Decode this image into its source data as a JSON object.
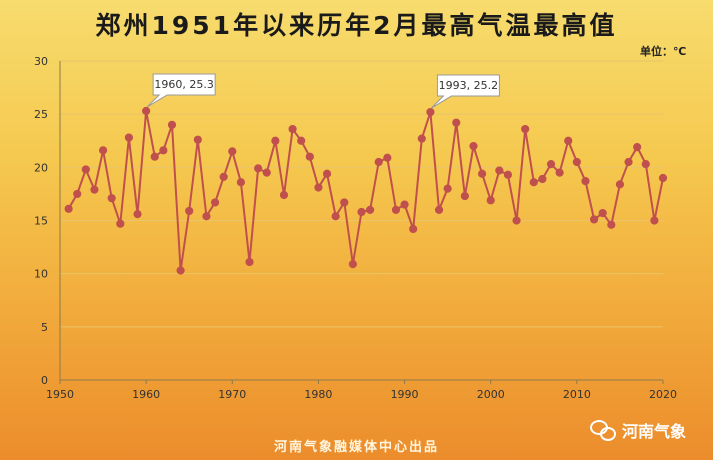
{
  "title": "郑州1951年以来历年2月最高气温最高值",
  "unit": "单位：℃",
  "footer": "河南气象融媒体中心出品",
  "brand": "河南气象",
  "colors": {
    "line": "#c0504d",
    "grid": "#e8c56a",
    "axis": "#8c7a4a"
  },
  "chart_data": {
    "type": "line",
    "title": "郑州1951年以来历年2月最高气温最高值",
    "unit": "℃",
    "xlim": [
      1950,
      2020
    ],
    "ylim": [
      0,
      30
    ],
    "x_ticks": [
      1950,
      1960,
      1970,
      1980,
      1990,
      2000,
      2010,
      2020
    ],
    "y_ticks": [
      0,
      5,
      10,
      15,
      20,
      25,
      30
    ],
    "grid": true,
    "x": [
      1951,
      1952,
      1953,
      1954,
      1955,
      1956,
      1957,
      1958,
      1959,
      1960,
      1961,
      1962,
      1963,
      1964,
      1965,
      1966,
      1967,
      1968,
      1969,
      1970,
      1971,
      1972,
      1973,
      1974,
      1975,
      1976,
      1977,
      1978,
      1979,
      1980,
      1981,
      1982,
      1983,
      1984,
      1985,
      1986,
      1987,
      1988,
      1989,
      1990,
      1991,
      1992,
      1993,
      1994,
      1995,
      1996,
      1997,
      1998,
      1999,
      2000,
      2001,
      2002,
      2003,
      2004,
      2005,
      2006,
      2007,
      2008,
      2009,
      2010,
      2011,
      2012,
      2013,
      2014,
      2015,
      2016,
      2017,
      2018,
      2019,
      2020
    ],
    "values": [
      16.1,
      17.5,
      19.8,
      17.9,
      21.6,
      17.1,
      14.7,
      22.8,
      15.6,
      25.3,
      21.0,
      21.6,
      24.0,
      10.3,
      15.9,
      22.6,
      15.4,
      16.7,
      19.1,
      21.5,
      18.6,
      11.1,
      19.9,
      19.5,
      22.5,
      17.4,
      23.6,
      22.5,
      21.0,
      18.1,
      19.4,
      15.4,
      16.7,
      10.9,
      15.8,
      16.0,
      20.5,
      20.9,
      16.0,
      16.5,
      14.2,
      22.7,
      25.2,
      16.0,
      18.0,
      24.2,
      17.3,
      22.0,
      19.4,
      16.9,
      19.7,
      19.3,
      15.0,
      23.6,
      18.6,
      18.9,
      20.3,
      19.5,
      22.5,
      20.5,
      18.7,
      15.1,
      15.7,
      14.6,
      18.4,
      20.5,
      21.9,
      20.3,
      15.0,
      19.0
    ],
    "annotations": [
      {
        "x": 1960,
        "y": 25.3,
        "text": "1960, 25.3"
      },
      {
        "x": 1993,
        "y": 25.2,
        "text": "1993, 25.2"
      }
    ]
  }
}
